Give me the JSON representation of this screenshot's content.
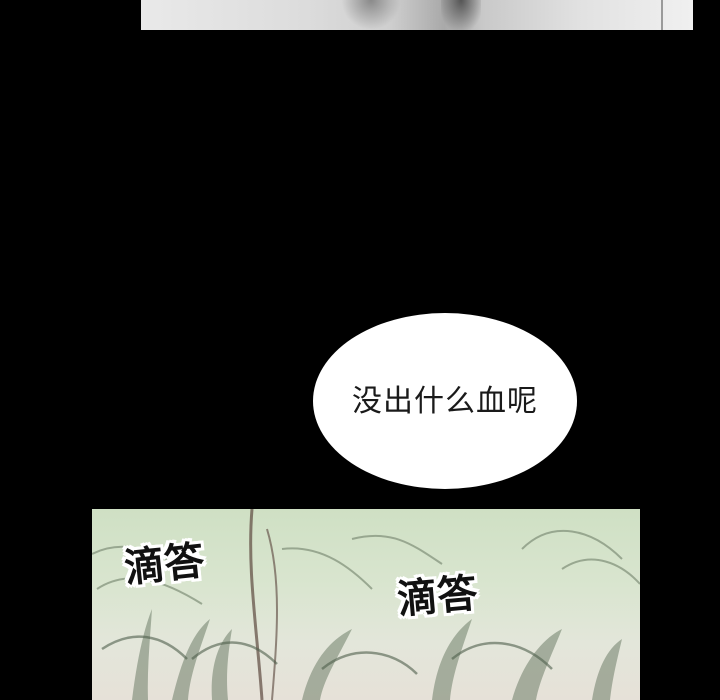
{
  "panels": {
    "top": {
      "description_visible": false
    },
    "dialogue": {
      "text": "没出什么血呢"
    },
    "bottom": {
      "sound_effects": [
        "滴答",
        "滴答"
      ]
    }
  },
  "colors": {
    "background": "#000000",
    "bubble": "#ffffff",
    "text": "#1a1a1a"
  }
}
